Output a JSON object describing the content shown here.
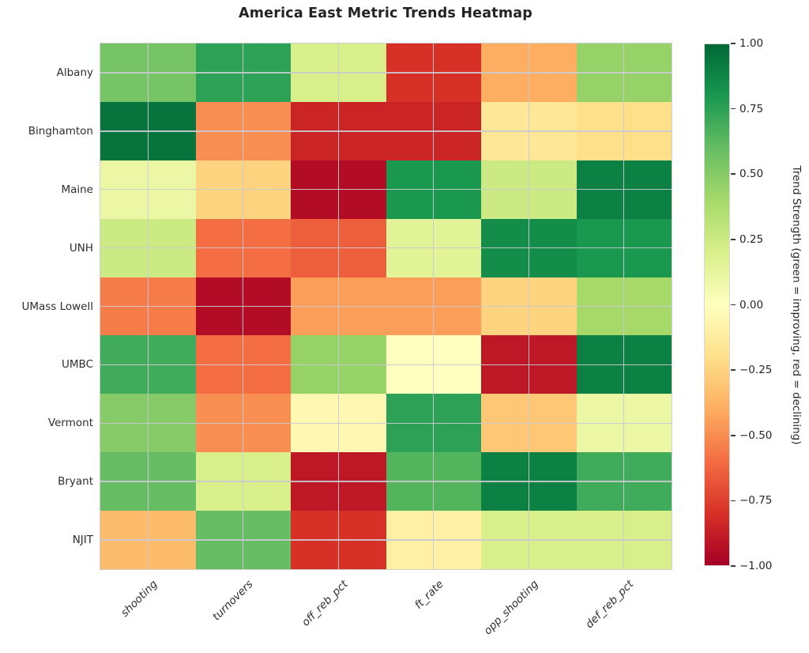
{
  "title": "America East Metric Trends Heatmap",
  "chart_data": {
    "type": "heatmap",
    "rows": [
      "Albany",
      "Binghamton",
      "Maine",
      "UNH",
      "UMass Lowell",
      "UMBC",
      "Vermont",
      "Bryant",
      "NJIT"
    ],
    "columns": [
      "shooting",
      "turnovers",
      "off_reb_pct",
      "ft_rate",
      "opp_shooting",
      "def_reb_pct"
    ],
    "values": [
      [
        0.55,
        0.75,
        0.2,
        -0.8,
        -0.4,
        0.45
      ],
      [
        0.95,
        -0.5,
        -0.85,
        -0.85,
        -0.15,
        -0.2
      ],
      [
        0.1,
        -0.25,
        -0.95,
        0.8,
        0.25,
        0.9
      ],
      [
        0.25,
        -0.6,
        -0.65,
        0.15,
        0.85,
        0.8
      ],
      [
        -0.55,
        -0.95,
        -0.45,
        -0.45,
        -0.25,
        0.4
      ],
      [
        0.7,
        -0.6,
        0.45,
        0.0,
        -0.9,
        0.9
      ],
      [
        0.5,
        -0.5,
        -0.05,
        0.75,
        -0.3,
        0.1
      ],
      [
        0.6,
        0.2,
        -0.9,
        0.65,
        0.9,
        0.7
      ],
      [
        -0.35,
        0.6,
        -0.8,
        -0.1,
        0.2,
        0.2
      ]
    ],
    "vmin": -1,
    "vmax": 1,
    "colormap": "RdYlGn",
    "colormap_stops": [
      [
        -1.0,
        "#a50026"
      ],
      [
        -0.8,
        "#d73027"
      ],
      [
        -0.6,
        "#f46d43"
      ],
      [
        -0.4,
        "#fdae61"
      ],
      [
        -0.2,
        "#fee08b"
      ],
      [
        0.0,
        "#ffffbf"
      ],
      [
        0.2,
        "#d9ef8b"
      ],
      [
        0.4,
        "#a6d96a"
      ],
      [
        0.6,
        "#66bd63"
      ],
      [
        0.8,
        "#1a9850"
      ],
      [
        1.0,
        "#006837"
      ]
    ],
    "grid": true,
    "colorbar": {
      "ticks": [
        "1.00",
        "0.75",
        "0.50",
        "0.25",
        "0.00",
        "−0.25",
        "−0.50",
        "−0.75",
        "−1.00"
      ],
      "label": "Trend Strength (green = improving, red = declining)"
    }
  },
  "styles": {
    "background": "#ffffff",
    "gridline_color": "#cacad0",
    "title_color": "#232323",
    "tick_text_color": "#2e2e2e",
    "plot_border_color": "#cfcfd4"
  }
}
